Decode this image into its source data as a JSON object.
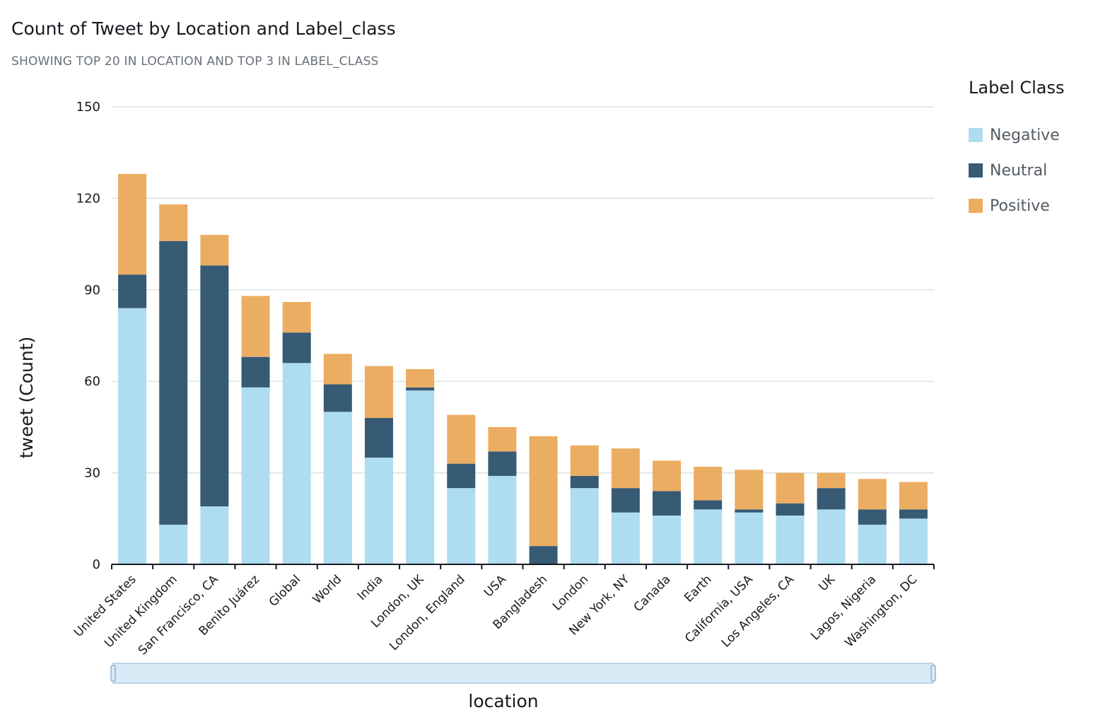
{
  "header": {
    "title": "Count of Tweet by Location and Label_class",
    "subtitle": "SHOWING TOP 20 IN LOCATION AND TOP 3 IN LABEL_CLASS"
  },
  "legend": {
    "title": "Label Class",
    "items": [
      {
        "label": "Negative",
        "color": "#aedcf0"
      },
      {
        "label": "Neutral",
        "color": "#375a75"
      },
      {
        "label": "Positive",
        "color": "#ebad62"
      }
    ]
  },
  "chart_data": {
    "type": "bar",
    "stacked": true,
    "xlabel": "location",
    "ylabel": "tweet (Count)",
    "ylim": [
      0,
      150
    ],
    "yticks": [
      0,
      30,
      60,
      90,
      120,
      150
    ],
    "grid": true,
    "legend_position": "right",
    "categories": [
      "United States",
      "United Kingdom",
      "San Francisco, CA",
      "Benito Juárez",
      "Global",
      "World",
      "India",
      "London, UK",
      "London, England",
      "USA",
      "Bangladesh",
      "London",
      "New York, NY",
      "Canada",
      "Earth",
      "California, USA",
      "Los Angeles, CA",
      "UK",
      "Lagos, Nigeria",
      "Washington, DC"
    ],
    "series": [
      {
        "name": "Negative",
        "color": "#aedcf0",
        "values": [
          84,
          13,
          19,
          58,
          66,
          50,
          35,
          57,
          25,
          29,
          0,
          25,
          17,
          16,
          18,
          17,
          16,
          18,
          13,
          15
        ]
      },
      {
        "name": "Neutral",
        "color": "#375a75",
        "values": [
          11,
          93,
          79,
          10,
          10,
          9,
          13,
          1,
          8,
          8,
          6,
          4,
          8,
          8,
          3,
          1,
          4,
          7,
          5,
          3
        ]
      },
      {
        "name": "Positive",
        "color": "#ebad62",
        "values": [
          33,
          12,
          10,
          20,
          10,
          10,
          17,
          6,
          16,
          8,
          36,
          10,
          13,
          10,
          11,
          13,
          10,
          5,
          10,
          9
        ]
      }
    ]
  }
}
